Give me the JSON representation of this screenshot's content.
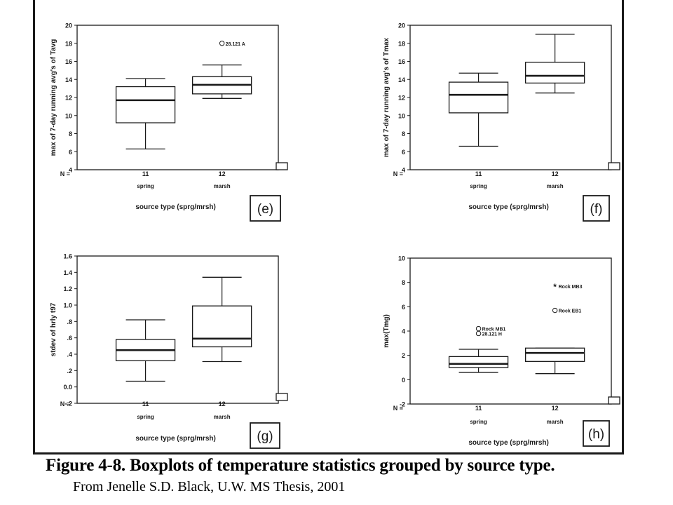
{
  "caption": "Figure 4-8.  Boxplots of temperature statistics grouped by source type.",
  "credit": "From Jenelle S.D. Black, U.W. MS Thesis, 2001",
  "colors": {
    "ink": "#1a1a1a",
    "background": "#ffffff"
  },
  "chart_data": [
    {
      "type": "box",
      "panel_label": "(e)",
      "xlabel": "source type (sprg/mrsh)",
      "ylabel": "max of 7-day running avg's of Tavg",
      "n_label": "N =",
      "ylim": [
        4,
        20
      ],
      "yticks": [
        "4",
        "6",
        "8",
        "10",
        "12",
        "14",
        "16",
        "18",
        "20"
      ],
      "categories": [
        "spring",
        "marsh"
      ],
      "n": [
        "11",
        "12"
      ],
      "boxes": [
        {
          "min": 6.3,
          "q1": 9.2,
          "median": 11.7,
          "q3": 13.2,
          "max": 14.1
        },
        {
          "min": 11.9,
          "q1": 12.4,
          "median": 13.4,
          "q3": 14.3,
          "max": 15.6
        }
      ],
      "outliers": [
        {
          "category": "marsh",
          "value": 18.0,
          "symbol": "circle",
          "label": "28.121 A"
        }
      ]
    },
    {
      "type": "box",
      "panel_label": "(f)",
      "xlabel": "source type (sprg/mrsh)",
      "ylabel": "max of 7-day running avg's of Tmax",
      "n_label": "N =",
      "ylim": [
        4,
        20
      ],
      "yticks": [
        "4",
        "6",
        "8",
        "10",
        "12",
        "14",
        "16",
        "18",
        "20"
      ],
      "categories": [
        "spring",
        "marsh"
      ],
      "n": [
        "11",
        "12"
      ],
      "boxes": [
        {
          "min": 6.6,
          "q1": 10.3,
          "median": 12.3,
          "q3": 13.7,
          "max": 14.7
        },
        {
          "min": 12.5,
          "q1": 13.6,
          "median": 14.4,
          "q3": 15.9,
          "max": 19.0
        }
      ],
      "outliers": []
    },
    {
      "type": "box",
      "panel_label": "(g)",
      "xlabel": "source type (sprg/mrsh)",
      "ylabel": "stdev of hrly t97",
      "n_label": "N =",
      "ylim": [
        -0.2,
        1.6
      ],
      "yticks": [
        "-.2",
        "0.0",
        ".2",
        ".4",
        ".6",
        ".8",
        "1.0",
        "1.2",
        "1.4",
        "1.6"
      ],
      "categories": [
        "spring",
        "marsh"
      ],
      "n": [
        "11",
        "12"
      ],
      "boxes": [
        {
          "min": 0.07,
          "q1": 0.32,
          "median": 0.45,
          "q3": 0.58,
          "max": 0.82
        },
        {
          "min": 0.31,
          "q1": 0.49,
          "median": 0.59,
          "q3": 0.99,
          "max": 1.34
        }
      ],
      "outliers": []
    },
    {
      "type": "box",
      "panel_label": "(h)",
      "xlabel": "source type (sprg/mrsh)",
      "ylabel": "max(Tmg)",
      "n_label": "N =",
      "ylim": [
        -2,
        10
      ],
      "yticks": [
        "-2",
        "0",
        "2",
        "4",
        "6",
        "8",
        "10"
      ],
      "categories": [
        "spring",
        "marsh"
      ],
      "n": [
        "11",
        "12"
      ],
      "boxes": [
        {
          "min": 0.6,
          "q1": 1.0,
          "median": 1.3,
          "q3": 1.9,
          "max": 2.5
        },
        {
          "min": 0.5,
          "q1": 1.5,
          "median": 2.2,
          "q3": 2.6,
          "max": 2.6
        }
      ],
      "outliers": [
        {
          "category": "spring",
          "value": 4.2,
          "symbol": "circle",
          "label": "Rock  MB1"
        },
        {
          "category": "spring",
          "value": 3.8,
          "symbol": "circle",
          "label": "28.121 H"
        },
        {
          "category": "marsh",
          "value": 7.7,
          "symbol": "asterisk",
          "label": "Rock  MB3"
        },
        {
          "category": "marsh",
          "value": 5.7,
          "symbol": "circle",
          "label": "Rock  EB1"
        }
      ]
    }
  ]
}
